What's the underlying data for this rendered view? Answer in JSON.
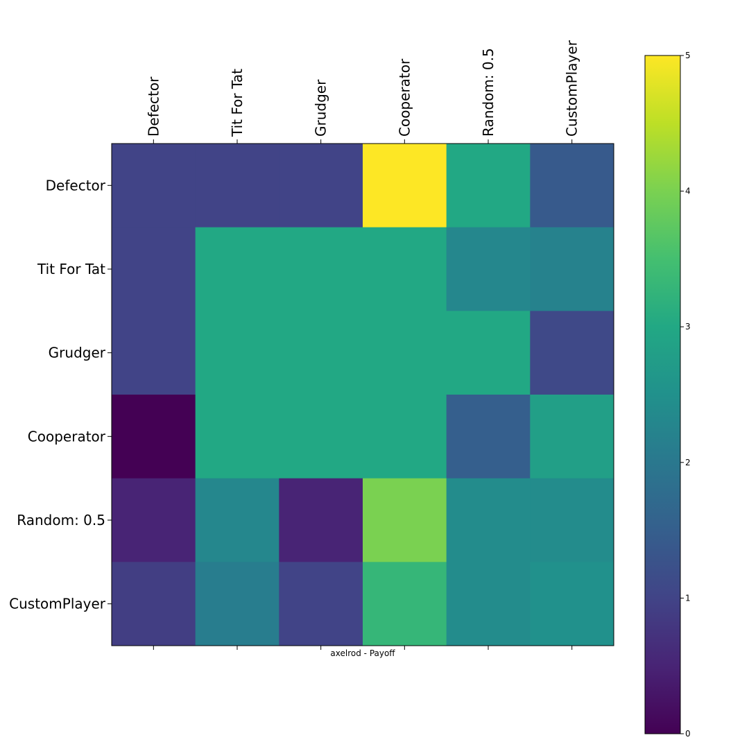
{
  "chart_data": {
    "type": "heatmap",
    "title": "",
    "xlabel": "axelrod - Payoff",
    "ylabel": "",
    "x_labels": [
      "Defector",
      "Tit For Tat",
      "Grudger",
      "Cooperator",
      "Random: 0.5",
      "CustomPlayer"
    ],
    "y_labels": [
      "Defector",
      "Tit For Tat",
      "Grudger",
      "Cooperator",
      "Random: 0.5",
      "CustomPlayer"
    ],
    "matrix": [
      [
        1.0,
        1.0,
        1.0,
        5.0,
        3.0,
        1.4
      ],
      [
        1.0,
        3.0,
        3.0,
        3.0,
        2.3,
        2.2
      ],
      [
        1.0,
        3.0,
        3.0,
        3.0,
        3.0,
        1.1
      ],
      [
        0.0,
        3.0,
        3.0,
        3.0,
        1.5,
        2.8
      ],
      [
        0.5,
        2.3,
        0.5,
        4.0,
        2.4,
        2.4
      ],
      [
        0.9,
        2.1,
        1.0,
        3.3,
        2.4,
        2.5
      ]
    ],
    "colormap": "viridis",
    "zlim": [
      0,
      5
    ],
    "colorbar": {
      "ticks": [
        0,
        1,
        2,
        3,
        4,
        5
      ],
      "tick_labels": [
        "0",
        "1",
        "2",
        "3",
        "4",
        "5"
      ]
    },
    "x_tick_position": "top",
    "grid": false
  }
}
